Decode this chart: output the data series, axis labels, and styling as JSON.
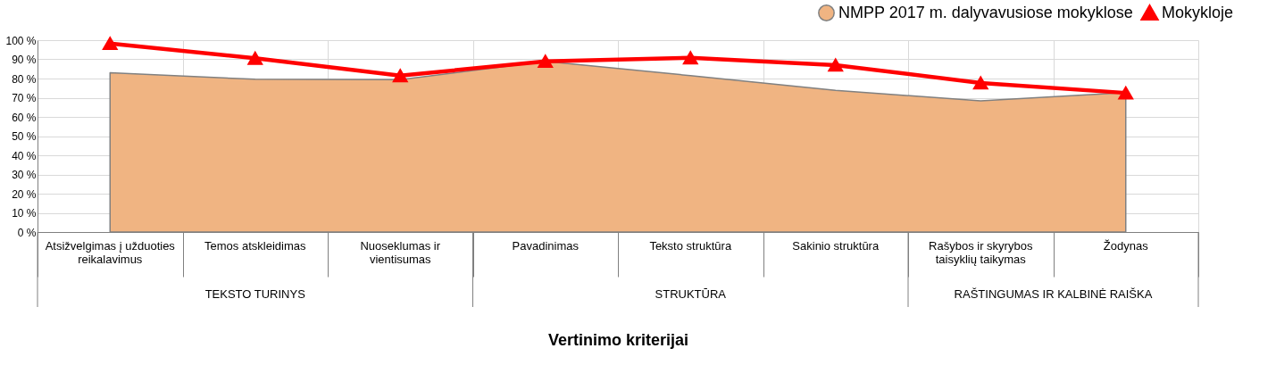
{
  "chart_data": {
    "type": "area",
    "xlabel": "Vertinimo kriterijai",
    "categories": [
      "Atsižvelgimas į užduoties reikalavimus",
      "Temos atskleidimas",
      "Nuoseklumas ir vientisumas",
      "Pavadinimas",
      "Teksto struktūra",
      "Sakinio struktūra",
      "Rašybos ir skyrybos taisyklių taikymas",
      "Žodynas"
    ],
    "series": [
      {
        "name": "NMPP 2017 m. dalyvavusiose mokyklose",
        "color": "#f0b482",
        "values": [
          83,
          79.6,
          79.4,
          89,
          81.5,
          73.8,
          68.4,
          72.7
        ]
      },
      {
        "name": "Mokykloje",
        "type": "line",
        "color": "#ff0000",
        "marker": "triangle",
        "values": [
          98.3,
          90.6,
          81.5,
          89,
          90.8,
          87,
          77.7,
          72.5
        ]
      }
    ],
    "annotations": [
      "TEKSTO TURINYS",
      "STRUKTŪRA",
      "RAŠTINGUMAS IR KALBINĖ RAIŠKA"
    ],
    "ylim": [
      0,
      100
    ],
    "yticks": [
      {
        "value": 0,
        "label": "0 %"
      },
      {
        "value": 10,
        "label": "10 %"
      },
      {
        "value": 20,
        "label": "20 %"
      },
      {
        "value": 30,
        "label": "30 %"
      },
      {
        "value": 40,
        "label": "40 %"
      },
      {
        "value": 50,
        "label": "50 %"
      },
      {
        "value": 60,
        "label": "60 %"
      },
      {
        "value": 70,
        "label": "70 %"
      },
      {
        "value": 80,
        "label": "80 %"
      },
      {
        "value": 90,
        "label": "90 %"
      },
      {
        "value": 100,
        "label": "100 %"
      }
    ],
    "grid": true,
    "legend": "top right"
  }
}
